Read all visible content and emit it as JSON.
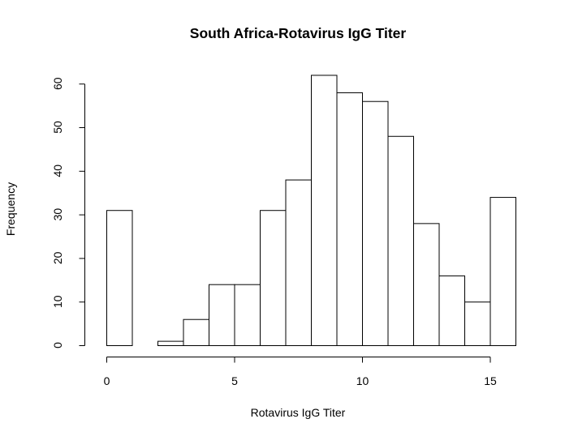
{
  "chart_data": {
    "type": "bar",
    "title": "South Africa-Rotavirus IgG Titer",
    "xlabel": "Rotavirus IgG Titer",
    "ylabel": "Frequency",
    "bin_edges": [
      0,
      1,
      2,
      3,
      4,
      5,
      6,
      7,
      8,
      9,
      10,
      11,
      12,
      13,
      14,
      15,
      16
    ],
    "values": [
      31,
      0,
      1,
      6,
      14,
      14,
      31,
      38,
      62,
      58,
      56,
      48,
      28,
      16,
      10,
      34
    ],
    "xlim": [
      0,
      16
    ],
    "ylim": [
      0,
      62
    ],
    "x_ticks": [
      0,
      5,
      10,
      15
    ],
    "y_ticks": [
      0,
      10,
      20,
      30,
      40,
      50,
      60
    ],
    "grid": false,
    "legend": "none"
  }
}
